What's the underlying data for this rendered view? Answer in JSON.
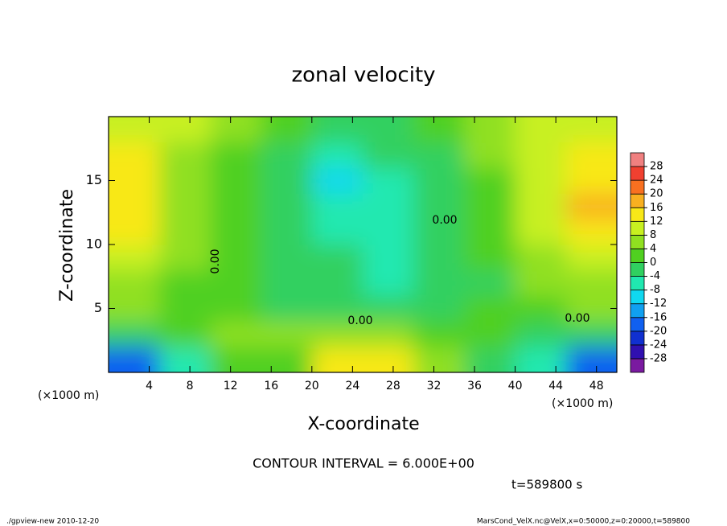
{
  "chart_data": {
    "type": "contour",
    "title": "zonal velocity",
    "xlabel": "X-coordinate",
    "ylabel": "Z-coordinate",
    "x_unit": "(×1000 m)",
    "y_unit": "(×1000 m)",
    "contour_interval": "CONTOUR INTERVAL = 6.000E+00",
    "time_label": "t=589800 s",
    "footer_left": "./gpview-new  2010-12-20",
    "footer_right": "MarsCond_VelX.nc@VelX,x=0:50000,z=0:20000,t=589800",
    "contour_labels": [
      "0.00",
      "0.00",
      "0.00",
      "0.00"
    ],
    "xlim": [
      0,
      50
    ],
    "ylim": [
      0,
      20
    ],
    "xticks": [
      4,
      8,
      12,
      16,
      20,
      24,
      28,
      32,
      36,
      40,
      44,
      48
    ],
    "yticks": [
      5,
      10,
      15
    ],
    "x": [
      2.5,
      7.5,
      12.5,
      17.5,
      22.5,
      27.5,
      32.5,
      37.5,
      42.5,
      47.5
    ],
    "z": [
      1,
      3,
      5,
      7,
      9,
      11,
      13,
      15,
      17,
      19
    ],
    "values": [
      [
        -18,
        -6,
        2,
        2,
        12,
        14,
        4,
        -2,
        -8,
        -18
      ],
      [
        -4,
        2,
        4,
        6,
        4,
        4,
        2,
        0,
        -2,
        -4
      ],
      [
        4,
        2,
        0,
        -2,
        -2,
        -4,
        -2,
        0,
        2,
        4
      ],
      [
        6,
        2,
        0,
        -2,
        -4,
        -8,
        -4,
        -2,
        4,
        6
      ],
      [
        8,
        4,
        0,
        -2,
        -4,
        -6,
        -4,
        0,
        6,
        10
      ],
      [
        12,
        6,
        0,
        -4,
        -6,
        -6,
        -2,
        2,
        8,
        14
      ],
      [
        14,
        6,
        0,
        -4,
        -8,
        -6,
        -2,
        2,
        10,
        16
      ],
      [
        14,
        6,
        0,
        -4,
        -10,
        -6,
        -2,
        2,
        8,
        14
      ],
      [
        12,
        6,
        2,
        -2,
        -6,
        -4,
        -2,
        4,
        8,
        12
      ],
      [
        10,
        8,
        4,
        0,
        -4,
        -2,
        0,
        4,
        10,
        10
      ]
    ],
    "clim": [
      -32,
      32
    ],
    "cticks": [
      -28,
      -24,
      -20,
      -16,
      -12,
      -8,
      -4,
      0,
      4,
      8,
      12,
      16,
      20,
      24,
      28
    ],
    "colors": [
      "#7a1aa0",
      "#3010b0",
      "#1030d0",
      "#1060f0",
      "#10a0f0",
      "#10d8f0",
      "#20e8b0",
      "#30d060",
      "#50d020",
      "#90e020",
      "#c8f020",
      "#f8e818",
      "#f8b020",
      "#f87020",
      "#f04030",
      "#f08080"
    ]
  }
}
